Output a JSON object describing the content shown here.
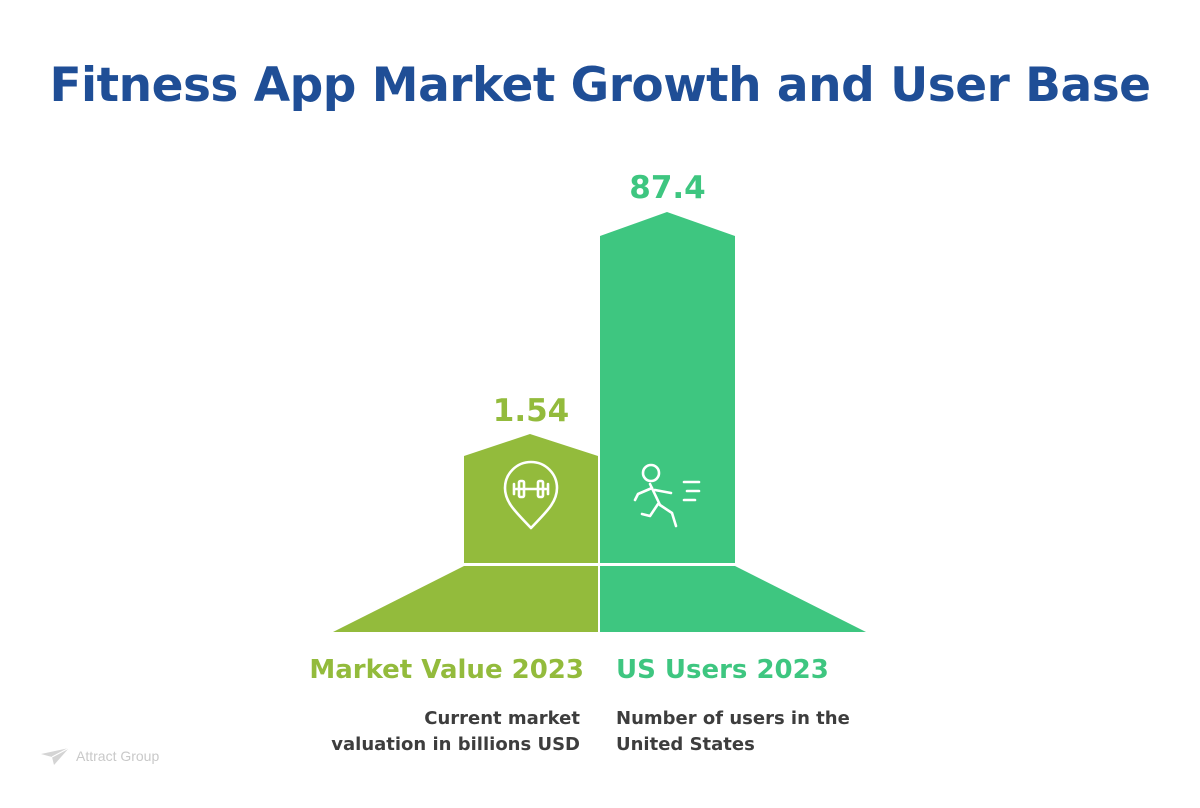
{
  "title": "Fitness App Market Growth and User Base",
  "colors": {
    "title": "#1F4E96",
    "olive": "#93BB3C",
    "green": "#3EC680",
    "text": "#3D3D3D",
    "logo": "#C9C9C9"
  },
  "items": [
    {
      "value": "1.54",
      "heading": "Market Value 2023",
      "description_line1": "Current market",
      "description_line2": "valuation in billions USD",
      "icon": "dumbbell-pin-icon"
    },
    {
      "value": "87.4",
      "heading": "US Users 2023",
      "description_line1": "Number of users in the",
      "description_line2": "United States",
      "icon": "running-person-icon"
    }
  ],
  "logo": {
    "text": "Attract Group",
    "icon": "paper-plane-icon"
  }
}
